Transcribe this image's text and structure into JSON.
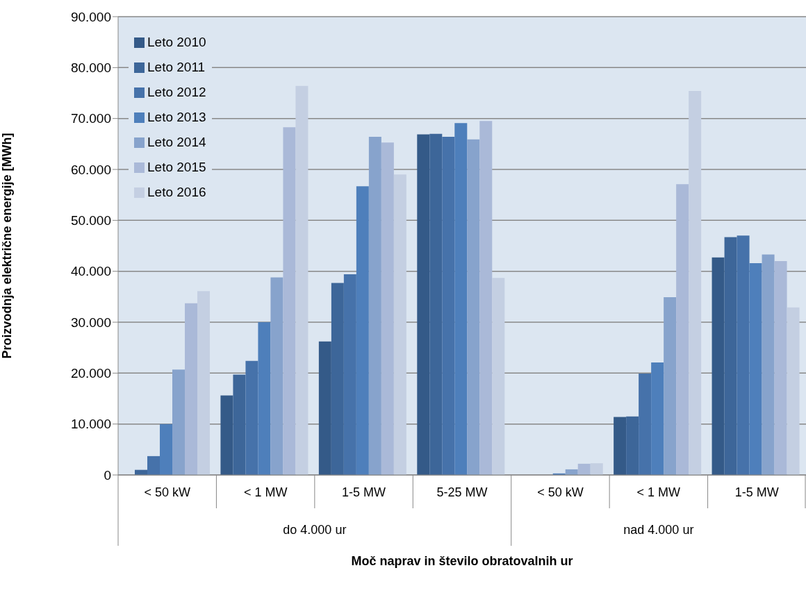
{
  "chart_data": {
    "type": "bar",
    "xlabel": "Moč naprav in število obratovalnih ur",
    "ylabel": "Proizvodnja električne energije [MWh]",
    "categories": [
      "< 50 kW",
      "< 1 MW",
      "1-5 MW",
      "5-25 MW",
      "< 50 kW",
      "< 1 MW",
      "1-5 MW"
    ],
    "annotations": [
      "do 4.000 ur",
      "nad 4.000 ur"
    ],
    "series": [
      {
        "name": "Leto 2010",
        "color": "#345a88",
        "values": [
          null,
          15600,
          26200,
          66900,
          null,
          11400,
          42700
        ]
      },
      {
        "name": "Leto 2011",
        "color": "#3d6699",
        "values": [
          1000,
          19700,
          37700,
          67000,
          null,
          11500,
          46700
        ]
      },
      {
        "name": "Leto 2012",
        "color": "#4672aa",
        "values": [
          3700,
          22400,
          39400,
          66400,
          null,
          19900,
          47000
        ]
      },
      {
        "name": "Leto 2013",
        "color": "#4e7fbb",
        "values": [
          10000,
          30000,
          56700,
          69100,
          300,
          22100,
          41600
        ]
      },
      {
        "name": "Leto 2014",
        "color": "#87a3cc",
        "values": [
          20700,
          38800,
          66400,
          65900,
          1100,
          34900,
          43300
        ]
      },
      {
        "name": "Leto 2015",
        "color": "#aab9d8",
        "values": [
          33700,
          68300,
          65300,
          69500,
          2200,
          57100,
          42000
        ]
      },
      {
        "name": "Leto 2016",
        "color": "#c4cfe2",
        "values": [
          36100,
          76400,
          59000,
          38700,
          2300,
          75400,
          32900
        ]
      }
    ],
    "ylim": [
      0,
      90000
    ],
    "yticks": [
      0,
      {
        "value": 10000,
        "label": "10.000"
      },
      {
        "value": 20000,
        "label": "20.000"
      },
      {
        "value": 30000,
        "label": "30.000"
      },
      {
        "value": 40000,
        "label": "40.000"
      },
      {
        "value": 50000,
        "label": "50.000"
      },
      {
        "value": 60000,
        "label": "60.000"
      },
      {
        "value": 70000,
        "label": "70.000"
      },
      {
        "value": 80000,
        "label": "80.000"
      },
      {
        "value": 90000,
        "label": "90.000"
      }
    ],
    "grid": "y",
    "legend": "top left"
  }
}
